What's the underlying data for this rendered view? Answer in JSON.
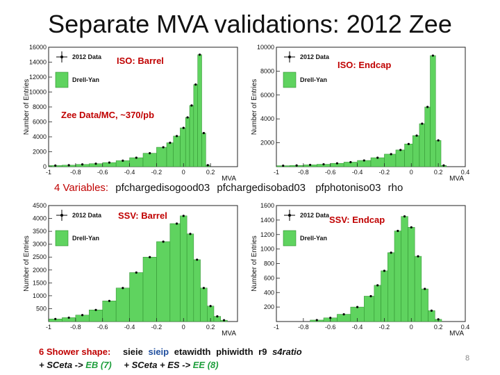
{
  "slide": {
    "title": "Separate MVA validations: 2012 Zee",
    "vars_prefix": "4 Variables:",
    "vars_list": [
      "pfchargedisogood03",
      "pfchargedisobad03",
      "pfphotoniso03",
      "rho"
    ],
    "shower_prefix": "6  Shower shape:",
    "shower_vars": [
      "sieie",
      "sieip",
      "etawidth",
      "phiwidth",
      "r9",
      "s4ratio"
    ],
    "sceta_eb": "+ SCeta  -> ",
    "eb_label": "EB (7)",
    "sceta_ee": "+ SCeta  + ES -> ",
    "ee_label": "EE (8)",
    "page_number": "8",
    "panel_labels": {
      "iso_barrel": "ISO: Barrel",
      "iso_endcap": "ISO: Endcap",
      "zee_note": "Zee Data/MC, ~370/pb",
      "ssv_barrel": "SSV: Barrel",
      "ssv_endcap": "SSV: Endcap"
    },
    "colors": {
      "mc_fill": "#5fd35f",
      "accent": "#c00000",
      "blue": "#1f4e9e",
      "green": "#1e9e3c"
    }
  },
  "chart_data": [
    {
      "type": "bar",
      "panel": "iso_barrel",
      "xlabel": "MVA",
      "ylabel": "Number of Entries",
      "xlim": [
        -1,
        0.4
      ],
      "ylim": [
        0,
        16000
      ],
      "xticks": [
        "-1",
        "-0.8",
        "-0.6",
        "-0.4",
        "-0.2",
        "0",
        "0.2"
      ],
      "yticks": [
        "0",
        "2000",
        "4000",
        "6000",
        "8000",
        "10000",
        "12000",
        "14000",
        "16000"
      ],
      "legend": [
        "2012 Data",
        "Drell-Yan"
      ],
      "x": [
        -0.95,
        -0.85,
        -0.75,
        -0.65,
        -0.55,
        -0.45,
        -0.35,
        -0.25,
        -0.15,
        -0.1,
        -0.05,
        0.0,
        0.03,
        0.06,
        0.09,
        0.12,
        0.15,
        0.18
      ],
      "values": [
        150,
        200,
        300,
        400,
        550,
        800,
        1200,
        1800,
        2600,
        3200,
        4100,
        5200,
        6600,
        8200,
        11000,
        15000,
        4500,
        200
      ]
    },
    {
      "type": "bar",
      "panel": "iso_endcap",
      "xlabel": "MVA",
      "ylabel": "Number of Entries",
      "xlim": [
        -1,
        0.4
      ],
      "ylim": [
        0,
        10000
      ],
      "xticks": [
        "-1",
        "-0.8",
        "-0.6",
        "-0.4",
        "-0.2",
        "0",
        "0.2",
        "0.4"
      ],
      "yticks": [
        "2000",
        "4000",
        "6000",
        "8000",
        "10000"
      ],
      "legend": [
        "2012 Data",
        "Drell-Yan"
      ],
      "x": [
        -0.95,
        -0.85,
        -0.75,
        -0.65,
        -0.55,
        -0.45,
        -0.35,
        -0.25,
        -0.15,
        -0.08,
        -0.02,
        0.04,
        0.08,
        0.12,
        0.16,
        0.2,
        0.24
      ],
      "values": [
        80,
        100,
        150,
        200,
        280,
        380,
        520,
        750,
        1050,
        1400,
        1900,
        2600,
        3600,
        5000,
        9300,
        2200,
        100
      ]
    },
    {
      "type": "bar",
      "panel": "ssv_barrel",
      "xlabel": "MVA",
      "ylabel": "Number of Entries",
      "xlim": [
        -1,
        0.4
      ],
      "ylim": [
        0,
        4500
      ],
      "xticks": [
        "-1",
        "-0.8",
        "-0.6",
        "-0.4",
        "-0.2",
        "0",
        "0.2"
      ],
      "yticks": [
        "500",
        "1000",
        "1500",
        "2000",
        "2500",
        "3000",
        "3500",
        "4000",
        "4500"
      ],
      "legend": [
        "2012 Data",
        "Drell-Yan"
      ],
      "x": [
        -0.95,
        -0.85,
        -0.75,
        -0.65,
        -0.55,
        -0.45,
        -0.35,
        -0.25,
        -0.15,
        -0.05,
        0.0,
        0.05,
        0.1,
        0.15,
        0.2,
        0.25,
        0.3
      ],
      "values": [
        100,
        150,
        250,
        450,
        800,
        1300,
        1900,
        2500,
        3100,
        3800,
        4100,
        3400,
        2400,
        1300,
        600,
        200,
        50
      ]
    },
    {
      "type": "bar",
      "panel": "ssv_endcap",
      "xlabel": "MVA",
      "ylabel": "Number of Entries",
      "xlim": [
        -1,
        0.4
      ],
      "ylim": [
        0,
        1600
      ],
      "xticks": [
        "-1",
        "-0.8",
        "-0.6",
        "-0.4",
        "-0.2",
        "0",
        "0.2",
        "0.4"
      ],
      "yticks": [
        "200",
        "400",
        "600",
        "800",
        "1000",
        "1200",
        "1400",
        "1600"
      ],
      "legend": [
        "2012 Data",
        "Drell-Yan"
      ],
      "x": [
        -0.7,
        -0.6,
        -0.5,
        -0.4,
        -0.3,
        -0.25,
        -0.2,
        -0.15,
        -0.1,
        -0.05,
        0.0,
        0.05,
        0.1,
        0.15,
        0.2
      ],
      "values": [
        20,
        50,
        100,
        200,
        350,
        500,
        700,
        950,
        1250,
        1450,
        1300,
        900,
        450,
        150,
        30
      ]
    }
  ]
}
